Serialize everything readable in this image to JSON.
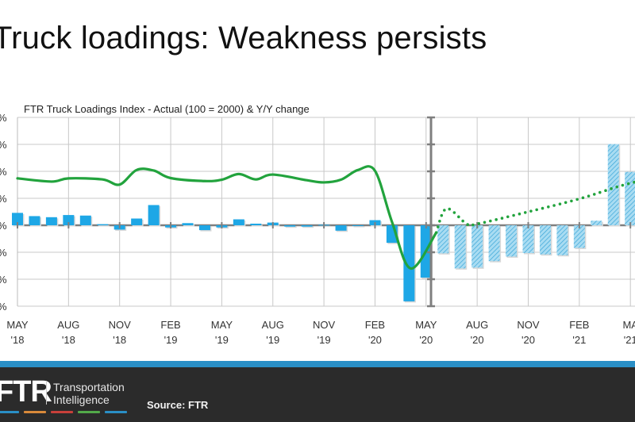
{
  "slide": {
    "title": "Truck loadings: Weakness persists"
  },
  "footer": {
    "logo_text": "FTR",
    "logo_tagline_1": "Transportation",
    "logo_tagline_2": "Intelligence",
    "logo_colors": [
      "#2a8fc6",
      "#d98a3a",
      "#c8403a",
      "#52a94a",
      "#2a8fc6"
    ],
    "source": "Source: FTR",
    "band_color": "#2a8fc6",
    "background_color": "#2b2b2b"
  },
  "chart_data": {
    "type": "bar+line",
    "title": "FTR Truck Loadings Index - Actual (100 = 2000) & Y/Y change",
    "ytick_labels": [
      "%",
      "%",
      "%",
      "%",
      "%",
      "%",
      "%",
      "%"
    ],
    "ylim": [
      -3,
      4
    ],
    "grid": true,
    "x_tick_labels": [
      [
        "MAY",
        "'18"
      ],
      [
        "AUG",
        "'18"
      ],
      [
        "NOV",
        "'18"
      ],
      [
        "FEB",
        "'19"
      ],
      [
        "MAY",
        "'19"
      ],
      [
        "AUG",
        "'19"
      ],
      [
        "NOV",
        "'19"
      ],
      [
        "FEB",
        "'20"
      ],
      [
        "MAY",
        "'20"
      ],
      [
        "AUG",
        "'20"
      ],
      [
        "NOV",
        "'20"
      ],
      [
        "FEB",
        "'21"
      ],
      [
        "MA",
        "'21"
      ]
    ],
    "months": [
      "May-18",
      "Jun-18",
      "Jul-18",
      "Aug-18",
      "Sep-18",
      "Oct-18",
      "Nov-18",
      "Dec-18",
      "Jan-19",
      "Feb-19",
      "Mar-19",
      "Apr-19",
      "May-19",
      "Jun-19",
      "Jul-19",
      "Aug-19",
      "Sep-19",
      "Oct-19",
      "Nov-19",
      "Dec-19",
      "Jan-20",
      "Feb-20",
      "Mar-20",
      "Apr-20",
      "May-20",
      "Jun-20",
      "Jul-20",
      "Aug-20",
      "Sep-20",
      "Oct-20",
      "Nov-20",
      "Dec-20",
      "Jan-21",
      "Feb-21",
      "Mar-21",
      "Apr-21",
      "May-21"
    ],
    "yoy_change_actual": [
      0.46,
      0.34,
      0.3,
      0.38,
      0.36,
      0.04,
      -0.16,
      0.25,
      0.75,
      -0.08,
      0.08,
      -0.18,
      -0.08,
      0.22,
      0.06,
      0.1,
      -0.05,
      -0.05,
      0.02,
      -0.2,
      0.0,
      0.19,
      -0.65,
      -2.82,
      -1.94
    ],
    "yoy_change_forecast": [
      -1.04,
      -1.6,
      -1.57,
      -1.33,
      -1.16,
      -1.03,
      -1.08,
      -1.11,
      -0.84,
      0.17,
      3.01,
      1.98
    ],
    "index_actual": [
      [
        0,
        1.74
      ],
      [
        2,
        1.62
      ],
      [
        3,
        1.74
      ],
      [
        5,
        1.7
      ],
      [
        6,
        1.51
      ],
      [
        7,
        2.05
      ],
      [
        8,
        2.03
      ],
      [
        9,
        1.75
      ],
      [
        11,
        1.64
      ],
      [
        12,
        1.69
      ],
      [
        13,
        1.9
      ],
      [
        14,
        1.7
      ],
      [
        15,
        1.88
      ],
      [
        17,
        1.67
      ],
      [
        18,
        1.59
      ],
      [
        19,
        1.69
      ],
      [
        20,
        2.05
      ],
      [
        21,
        2.02
      ],
      [
        22,
        0.12
      ],
      [
        23.1,
        -1.6
      ],
      [
        24.6,
        -0.27
      ]
    ],
    "index_forecast": [
      [
        24.6,
        -0.27
      ],
      [
        25.2,
        0.62
      ],
      [
        26.4,
        0.04
      ],
      [
        27,
        0.05
      ],
      [
        30,
        0.5
      ],
      [
        33,
        0.98
      ],
      [
        35.3,
        1.44
      ],
      [
        37,
        1.72
      ]
    ],
    "colors": {
      "actual_bar": "#1ea7e6",
      "forecast_bar_fill": "#a9dcf2",
      "forecast_bar_hatch": "#3aa6d8",
      "index_line": "#22a33d",
      "grid": "#c8c8c8",
      "axis": "#808080"
    }
  }
}
